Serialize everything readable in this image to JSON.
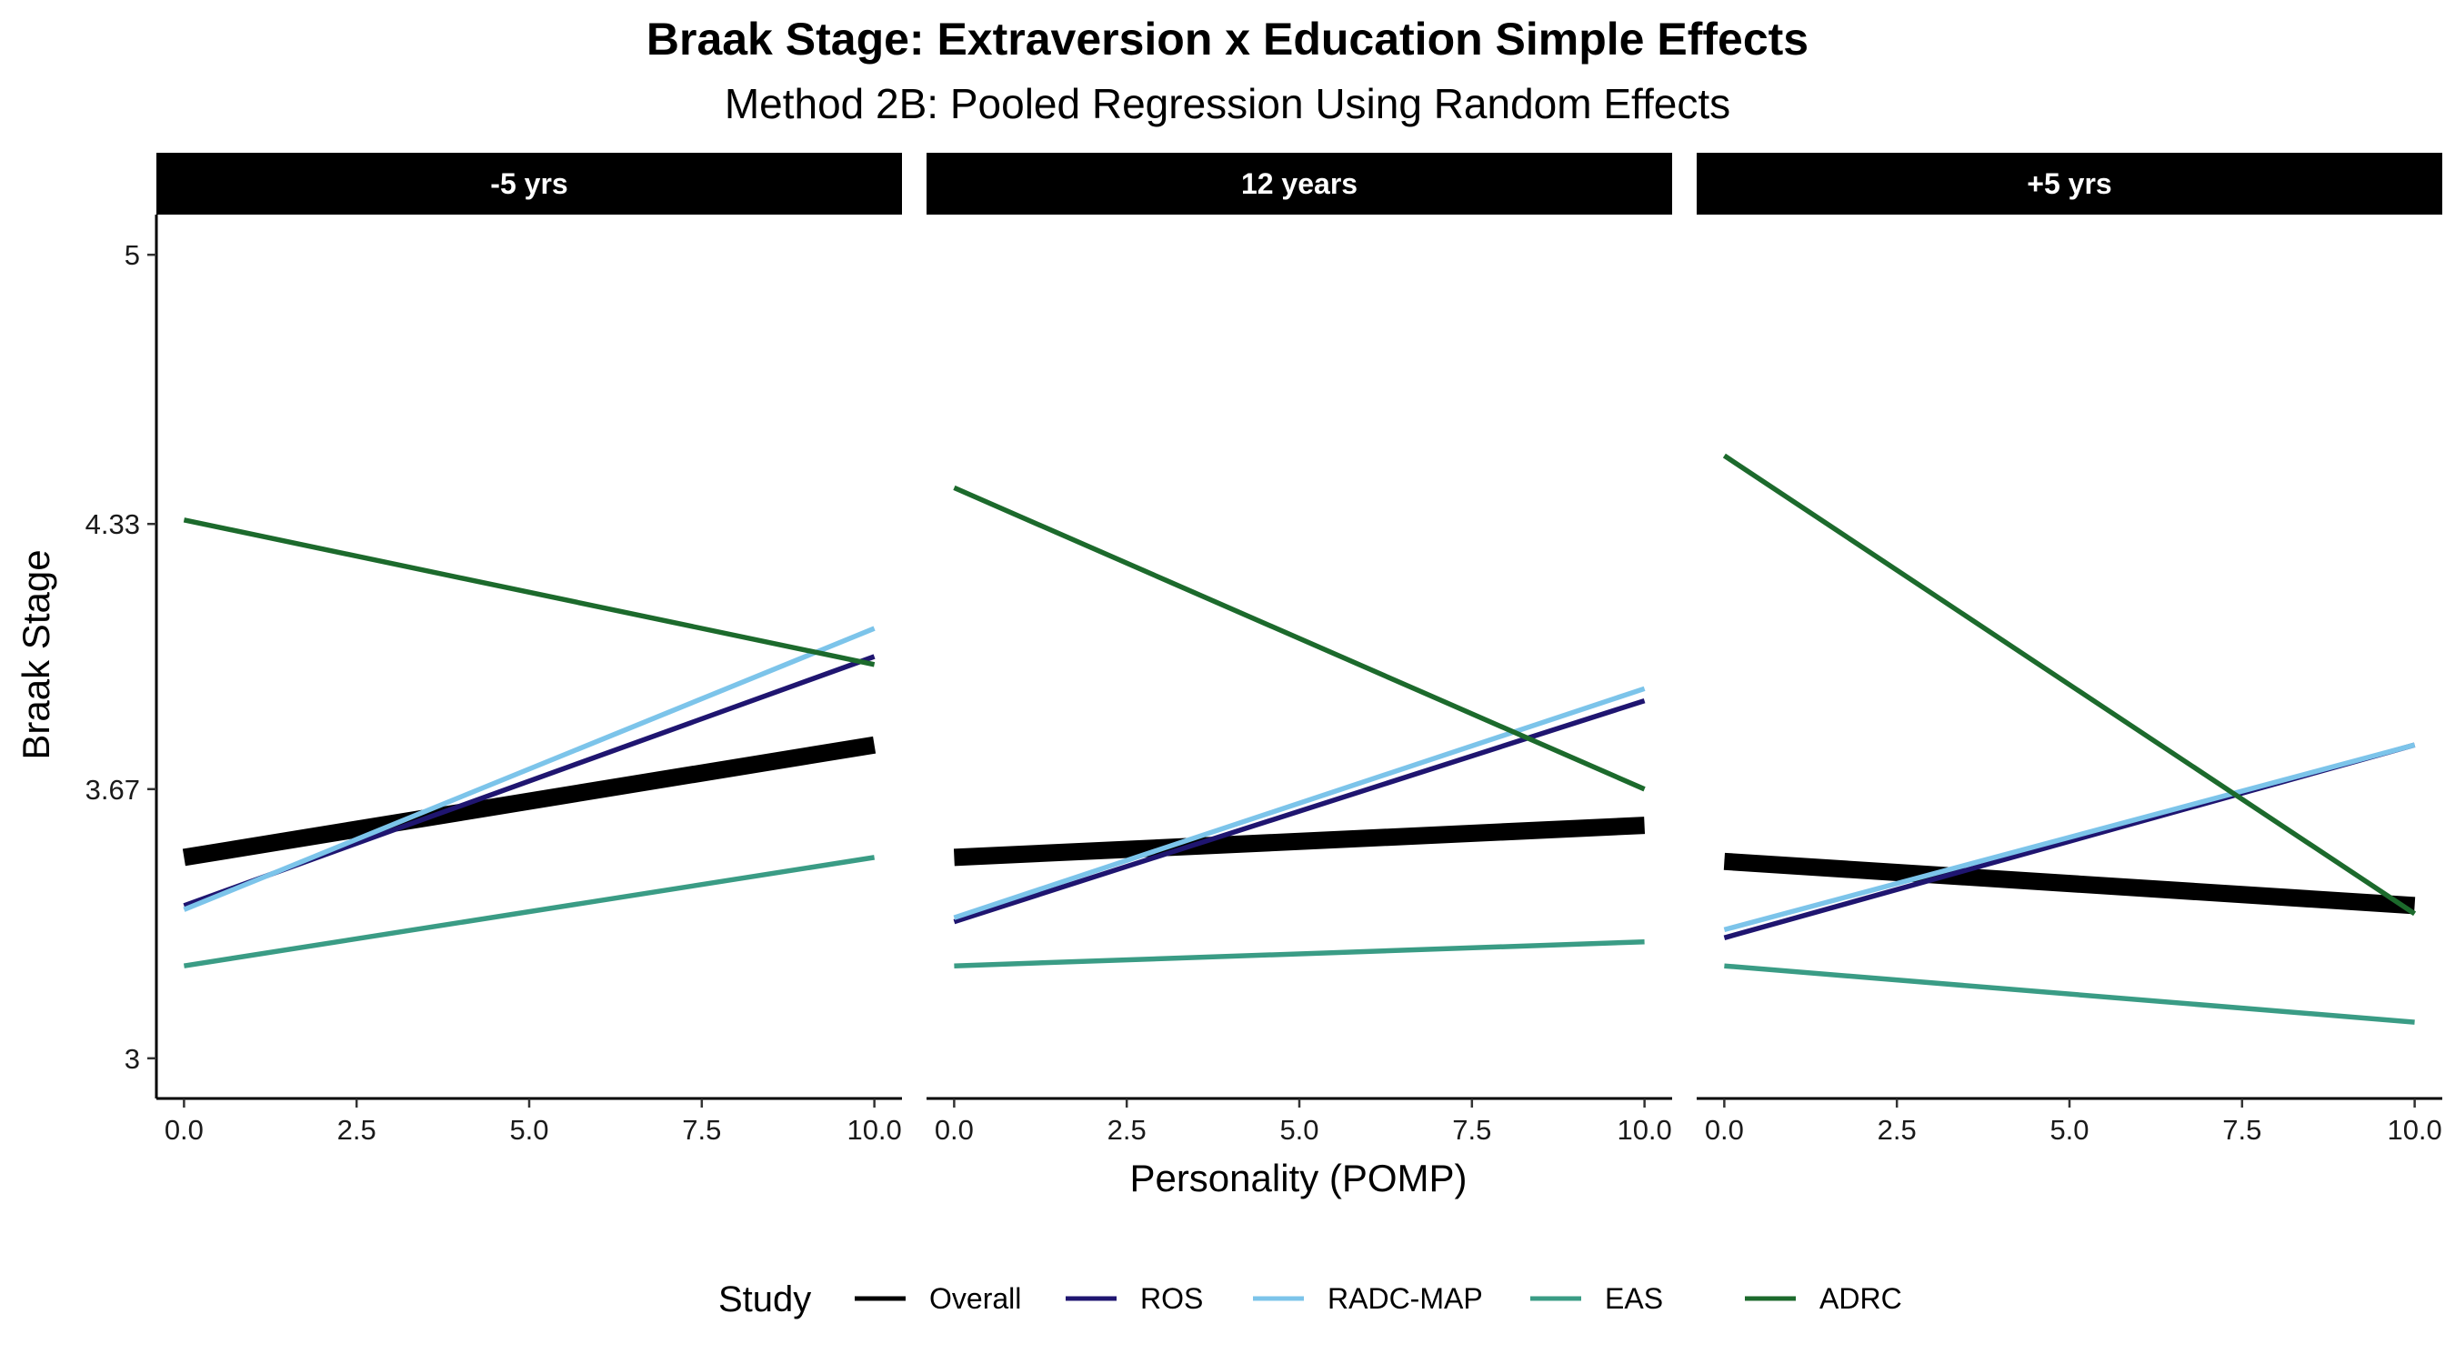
{
  "title": "Braak Stage: Extraversion x Education Simple Effects",
  "subtitle": "Method 2B: Pooled Regression Using Random Effects",
  "chart_data": {
    "type": "line",
    "xlabel": "Personality (POMP)",
    "ylabel": "Braak Stage",
    "xlim": [
      -0.4,
      10.4
    ],
    "ylim": [
      2.9,
      5.1
    ],
    "x_ticks": [
      "0.0",
      "2.5",
      "5.0",
      "7.5",
      "10.0"
    ],
    "y_ticks": [
      "3",
      "3.67",
      "4.33",
      "5"
    ],
    "grid": false,
    "legend_position": "bottom",
    "legend_title": "Study",
    "panels": [
      {
        "label": "-5 yrs",
        "series": [
          {
            "name": "Overall",
            "x": [
              0,
              10
            ],
            "y": [
              3.5,
              3.78
            ]
          },
          {
            "name": "ROS",
            "x": [
              0,
              10
            ],
            "y": [
              3.38,
              4.0
            ]
          },
          {
            "name": "RADC-MAP",
            "x": [
              0,
              10
            ],
            "y": [
              3.37,
              4.07
            ]
          },
          {
            "name": "EAS",
            "x": [
              0,
              10
            ],
            "y": [
              3.23,
              3.5
            ]
          },
          {
            "name": "ADRC",
            "x": [
              0,
              10
            ],
            "y": [
              4.34,
              3.98
            ]
          }
        ]
      },
      {
        "label": "12 years",
        "series": [
          {
            "name": "Overall",
            "x": [
              0,
              10
            ],
            "y": [
              3.5,
              3.58
            ]
          },
          {
            "name": "ROS",
            "x": [
              0,
              10
            ],
            "y": [
              3.34,
              3.89
            ]
          },
          {
            "name": "RADC-MAP",
            "x": [
              0,
              10
            ],
            "y": [
              3.35,
              3.92
            ]
          },
          {
            "name": "EAS",
            "x": [
              0,
              10
            ],
            "y": [
              3.23,
              3.29
            ]
          },
          {
            "name": "ADRC",
            "x": [
              0,
              10
            ],
            "y": [
              4.42,
              3.67
            ]
          }
        ]
      },
      {
        "label": "+5 yrs",
        "series": [
          {
            "name": "Overall",
            "x": [
              0,
              10
            ],
            "y": [
              3.49,
              3.38
            ]
          },
          {
            "name": "ROS",
            "x": [
              0,
              10
            ],
            "y": [
              3.3,
              3.78
            ]
          },
          {
            "name": "RADC-MAP",
            "x": [
              0,
              10
            ],
            "y": [
              3.32,
              3.78
            ]
          },
          {
            "name": "EAS",
            "x": [
              0,
              10
            ],
            "y": [
              3.23,
              3.09
            ]
          },
          {
            "name": "ADRC",
            "x": [
              0,
              10
            ],
            "y": [
              4.5,
              3.36
            ]
          }
        ]
      }
    ],
    "series_styles": [
      {
        "name": "Overall",
        "color": "#000000",
        "width": "thick"
      },
      {
        "name": "ROS",
        "color": "#1f1570",
        "width": "thin"
      },
      {
        "name": "RADC-MAP",
        "color": "#7cc4ea",
        "width": "thin"
      },
      {
        "name": "EAS",
        "color": "#3a9c85",
        "width": "thin"
      },
      {
        "name": "ADRC",
        "color": "#1c6a2c",
        "width": "thin"
      }
    ]
  }
}
